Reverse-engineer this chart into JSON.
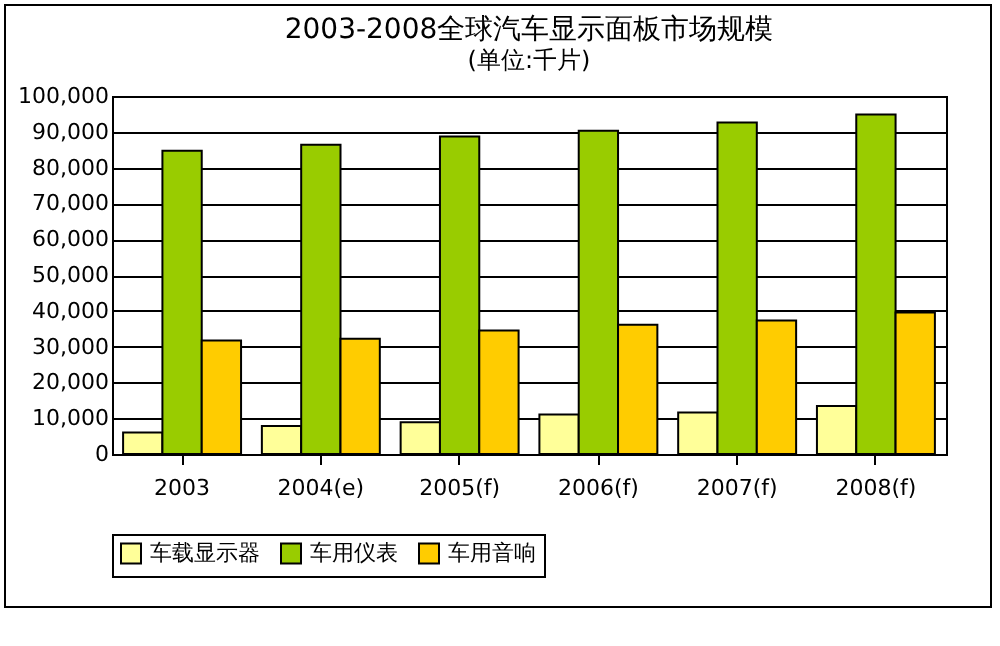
{
  "chart_data": {
    "type": "bar",
    "title": "2003-2008全球汽车显示面板市场规模",
    "subtitle": "(单位:千片)",
    "categories": [
      "2003",
      "2004(e)",
      "2005(f)",
      "2006(f)",
      "2007(f)",
      "2008(f)"
    ],
    "series": [
      {
        "name": "车载显示器",
        "color": "#ffff99",
        "values": [
          6000,
          7800,
          8900,
          11000,
          11600,
          13400
        ]
      },
      {
        "name": "车用仪表",
        "color": "#99cc00",
        "values": [
          84700,
          86400,
          88700,
          90300,
          92600,
          94800
        ]
      },
      {
        "name": "车用音响",
        "color": "#ffcc00",
        "values": [
          31700,
          32200,
          34500,
          36100,
          37300,
          39500
        ]
      }
    ],
    "ylim": [
      0,
      100000
    ],
    "yticks": [
      0,
      {
        "value": 10000,
        "label": "10,000"
      },
      {
        "value": 20000,
        "label": "20,000"
      },
      {
        "value": 30000,
        "label": "30,000"
      },
      {
        "value": 40000,
        "label": "40,000"
      },
      {
        "value": 50000,
        "label": "50,000"
      },
      {
        "value": 60000,
        "label": "60,000"
      },
      {
        "value": 70000,
        "label": "70,000"
      },
      {
        "value": 80000,
        "label": "80,000"
      },
      {
        "value": 90000,
        "label": "90,000"
      },
      {
        "value": 100000,
        "label": "100,000"
      }
    ],
    "grid": "y",
    "legend": "bottom"
  }
}
